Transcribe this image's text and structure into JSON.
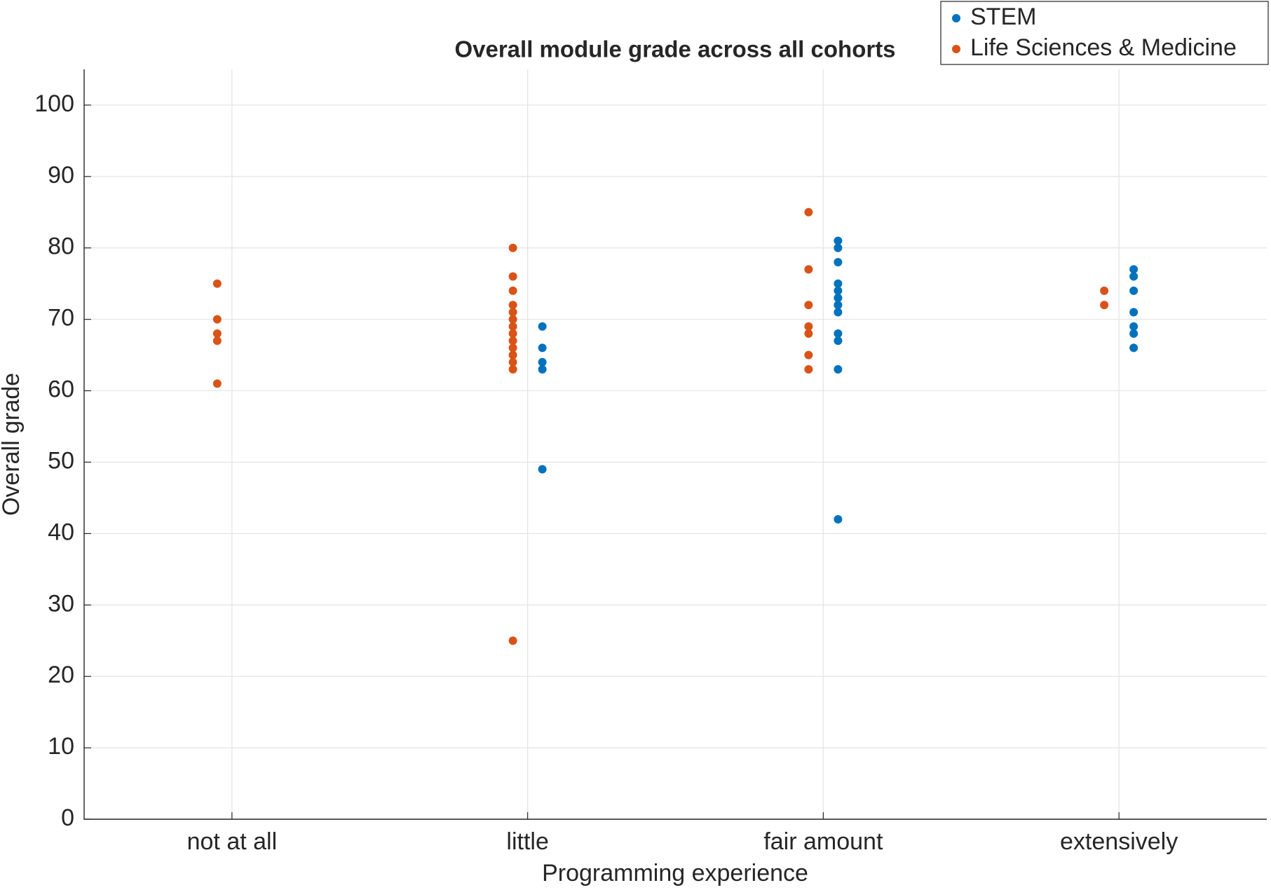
{
  "chart_data": {
    "type": "scatter",
    "title": "Overall module grade across all cohorts",
    "xlabel": "Programming experience",
    "ylabel": "Overall grade",
    "categories": [
      "not at all",
      "little",
      "fair amount",
      "extensively"
    ],
    "series": [
      {
        "name": "STEM",
        "color": "#0072bd",
        "values": [
          [],
          [
            69,
            66,
            64,
            63,
            49
          ],
          [
            81,
            80,
            78,
            75,
            74,
            73,
            72,
            71,
            68,
            67,
            63,
            42
          ],
          [
            77,
            76,
            74,
            71,
            69,
            68,
            66
          ]
        ]
      },
      {
        "name": "Life Sciences & Medicine",
        "color": "#d95319",
        "values": [
          [
            75,
            70,
            68,
            67,
            61
          ],
          [
            80,
            76,
            74,
            72,
            71,
            70,
            69,
            68,
            67,
            66,
            65,
            64,
            63,
            25
          ],
          [
            85,
            77,
            72,
            69,
            68,
            65,
            63
          ],
          [
            74,
            72
          ]
        ]
      }
    ],
    "ylim": [
      0,
      105
    ],
    "yticks": [
      0,
      10,
      20,
      30,
      40,
      50,
      60,
      70,
      80,
      90,
      100
    ],
    "grid": true,
    "legend": "top-right"
  }
}
